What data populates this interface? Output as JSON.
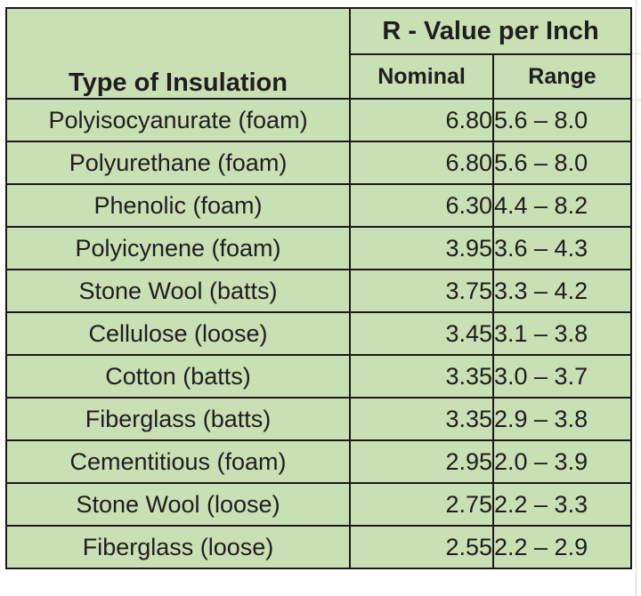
{
  "chart_data": {
    "type": "table",
    "columns": {
      "type_header": "Type of Insulation",
      "group_header": "R - Value per Inch",
      "nominal_header": "Nominal",
      "range_header": "Range"
    },
    "rows": [
      {
        "type": "Polyisocyanurate (foam)",
        "nominal": "6.80",
        "range": "5.6 – 8.0"
      },
      {
        "type": "Polyurethane (foam)",
        "nominal": "6.80",
        "range": "5.6 – 8.0"
      },
      {
        "type": "Phenolic (foam)",
        "nominal": "6.30",
        "range": "4.4 – 8.2"
      },
      {
        "type": "Polyicynene (foam)",
        "nominal": "3.95",
        "range": "3.6 – 4.3"
      },
      {
        "type": "Stone Wool (batts)",
        "nominal": "3.75",
        "range": "3.3 – 4.2"
      },
      {
        "type": "Cellulose (loose)",
        "nominal": "3.45",
        "range": "3.1 – 3.8"
      },
      {
        "type": "Cotton (batts)",
        "nominal": "3.35",
        "range": "3.0 – 3.7"
      },
      {
        "type": "Fiberglass (batts)",
        "nominal": "3.35",
        "range": "2.9 – 3.8"
      },
      {
        "type": "Cementitious (foam)",
        "nominal": "2.95",
        "range": "2.0 – 3.9"
      },
      {
        "type": "Stone Wool (loose)",
        "nominal": "2.75",
        "range": "2.2 – 3.3"
      },
      {
        "type": "Fiberglass (loose)",
        "nominal": "2.55",
        "range": "2.2 – 2.9"
      }
    ]
  },
  "colors": {
    "cell_fill": "#c9dfb4",
    "border": "#1a1a1a",
    "text": "#1e1e1e"
  }
}
